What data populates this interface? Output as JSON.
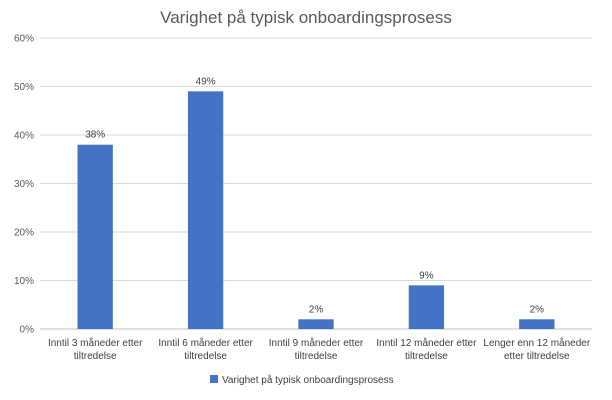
{
  "chart_data": {
    "type": "bar",
    "title": "Varighet på typisk onboardingsprosess",
    "categories": [
      [
        "Inntil 3 måneder etter",
        "tiltredelse"
      ],
      [
        "Inntil 6 måneder etter",
        "tiltredelse"
      ],
      [
        "Inntil 9 måneder etter",
        "tiltredelse"
      ],
      [
        "Inntil 12 måneder etter",
        "tiltredelse"
      ],
      [
        "Lenger enn 12 måneder",
        "etter tiltredelse"
      ]
    ],
    "series": [
      {
        "name": "Varighet på typisk onboardingsprosess",
        "values": [
          38,
          49,
          2,
          9,
          2
        ],
        "labels": [
          "38%",
          "49%",
          "2%",
          "9%",
          "2%"
        ],
        "color": "#4472c4"
      }
    ],
    "ylim": [
      0,
      60
    ],
    "yticks": [
      0,
      10,
      20,
      30,
      40,
      50,
      60
    ],
    "ytick_labels": [
      "0%",
      "10%",
      "20%",
      "30%",
      "40%",
      "50%",
      "60%"
    ],
    "xlabel": "",
    "ylabel": "",
    "grid": true,
    "legend": "bottom"
  }
}
